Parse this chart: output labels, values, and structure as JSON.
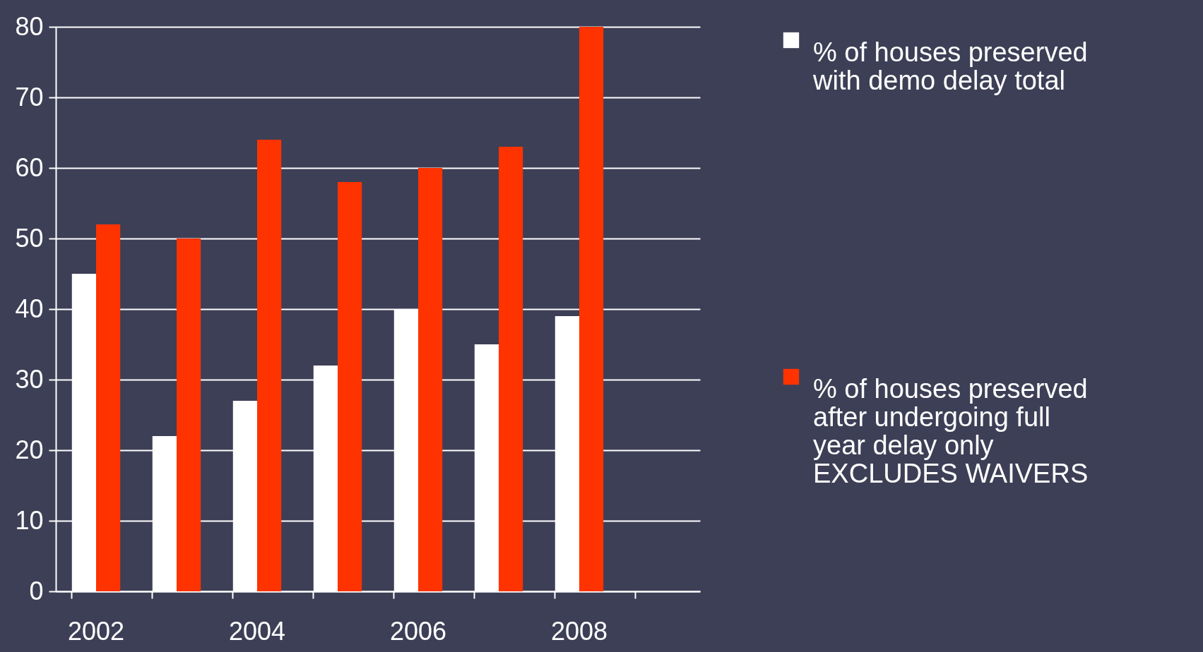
{
  "chart_data": {
    "type": "bar",
    "categories": [
      "2002",
      null,
      "2004",
      null,
      "2006",
      null,
      "2008",
      null
    ],
    "series": [
      {
        "name": "% of houses preserved with demo delay total",
        "color": "#ffffff",
        "values": [
          45,
          22,
          27,
          32,
          40,
          35,
          39,
          null
        ]
      },
      {
        "name": "% of houses preserved after undergoing full year delay only EXCLUDES WAIVERS",
        "color": "#ff3300",
        "values": [
          52,
          50,
          64,
          58,
          60,
          63,
          80,
          null
        ]
      }
    ],
    "ylim": [
      0,
      80
    ],
    "yticks": [
      0,
      10,
      20,
      30,
      40,
      50,
      60,
      70,
      80
    ],
    "grid": "y",
    "legend": "right"
  }
}
